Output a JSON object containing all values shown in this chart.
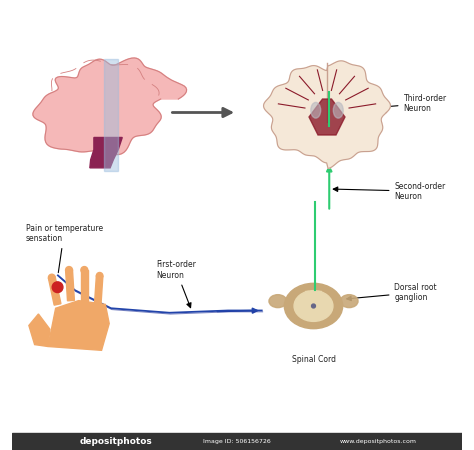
{
  "bg_color": "#ffffff",
  "title": "",
  "labels": {
    "third_order": "Third-order\nNeuron",
    "second_order": "Second-order\nNeuron",
    "first_order": "First-order\nNeuron",
    "dorsal_root": "Dorsal root\nganglion",
    "spinal_cord": "Spinal Cord",
    "pain_sensation": "Pain or temperature\nsensation"
  },
  "brain_lateral_fill": "#f5b8b8",
  "brain_lateral_stroke": "#d48080",
  "brainstem_fill": "#8b2252",
  "brain_coronal_fill": "#f5e8d8",
  "brain_coronal_stroke": "#c8a090",
  "brain_coronal_inner": "#8b1a2a",
  "neuron_green": "#2ecc71",
  "neuron_blue": "#2244aa",
  "neuron_darkblue": "#223399",
  "hand_fill": "#f0a868",
  "pain_spot": "#cc2222",
  "spinal_cord_outer": "#c8a878",
  "spinal_cord_inner": "#e8d8b0",
  "arrow_color": "#555555",
  "label_color": "#222222",
  "watermark_bg": "#333333",
  "watermark_text": "#ffffff",
  "blue_slice": "#99bbdd",
  "ventricle_color": "#b8b8c0",
  "central_canal": "#666688"
}
